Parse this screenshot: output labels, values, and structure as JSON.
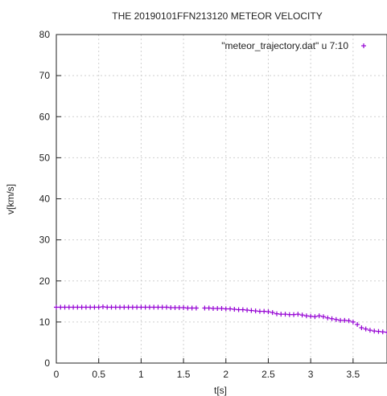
{
  "chart_data": {
    "type": "scatter",
    "title": "THE 20190101FFN213120 METEOR VELOCITY",
    "xlabel": "t[s]",
    "ylabel": "v[km/s]",
    "xlim": [
      0,
      3.9
    ],
    "ylim": [
      0,
      80
    ],
    "x_ticks": [
      0,
      0.5,
      1,
      1.5,
      2,
      2.5,
      3,
      3.5
    ],
    "y_ticks": [
      0,
      10,
      20,
      30,
      40,
      50,
      60,
      70,
      80
    ],
    "x_tick_labels": [
      "0",
      "0.5",
      "1",
      "1.5",
      "2",
      "2.5",
      "3",
      "3.5"
    ],
    "y_tick_labels": [
      "0",
      "10",
      "20",
      "30",
      "40",
      "50",
      "60",
      "70",
      "80"
    ],
    "grid": true,
    "legend_position": "top-right",
    "series": [
      {
        "name": "\"meteor_trajectory.dat\" u 7:10",
        "marker": "+",
        "color": "#9400d3",
        "x": [
          0.0,
          0.05,
          0.1,
          0.15,
          0.2,
          0.25,
          0.3,
          0.35,
          0.4,
          0.45,
          0.5,
          0.55,
          0.6,
          0.65,
          0.7,
          0.75,
          0.8,
          0.85,
          0.9,
          0.95,
          1.0,
          1.05,
          1.1,
          1.15,
          1.2,
          1.25,
          1.3,
          1.35,
          1.4,
          1.45,
          1.5,
          1.55,
          1.6,
          1.65,
          1.75,
          1.8,
          1.85,
          1.9,
          1.95,
          2.0,
          2.05,
          2.1,
          2.15,
          2.2,
          2.25,
          2.3,
          2.35,
          2.4,
          2.45,
          2.5,
          2.55,
          2.6,
          2.65,
          2.7,
          2.75,
          2.8,
          2.85,
          2.9,
          2.95,
          3.0,
          3.05,
          3.1,
          3.15,
          3.2,
          3.25,
          3.3,
          3.35,
          3.4,
          3.45,
          3.5,
          3.55,
          3.6,
          3.65,
          3.7,
          3.75,
          3.8,
          3.85,
          3.9
        ],
        "y": [
          13.6,
          13.6,
          13.6,
          13.6,
          13.6,
          13.6,
          13.6,
          13.6,
          13.6,
          13.6,
          13.6,
          13.7,
          13.6,
          13.6,
          13.6,
          13.6,
          13.6,
          13.6,
          13.6,
          13.6,
          13.6,
          13.6,
          13.6,
          13.6,
          13.6,
          13.6,
          13.6,
          13.5,
          13.5,
          13.5,
          13.5,
          13.4,
          13.4,
          13.4,
          13.4,
          13.4,
          13.3,
          13.3,
          13.3,
          13.2,
          13.2,
          13.1,
          13.0,
          13.0,
          12.9,
          12.8,
          12.7,
          12.6,
          12.6,
          12.5,
          12.3,
          12.0,
          11.9,
          11.9,
          11.8,
          11.8,
          11.9,
          11.7,
          11.5,
          11.4,
          11.3,
          11.5,
          11.3,
          11.0,
          10.8,
          10.6,
          10.4,
          10.4,
          10.3,
          10.0,
          9.4,
          8.6,
          8.3,
          8.0,
          7.8,
          7.7,
          7.6,
          7.5
        ]
      }
    ]
  }
}
